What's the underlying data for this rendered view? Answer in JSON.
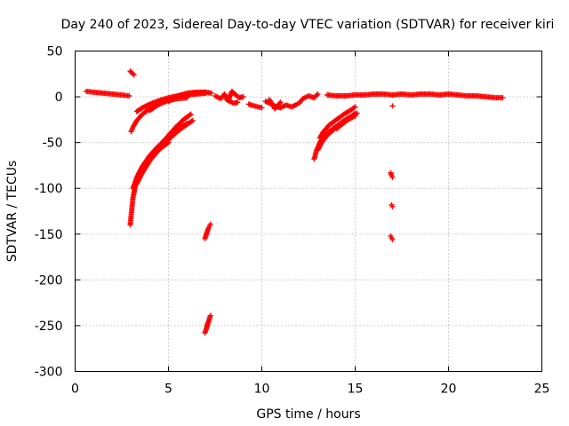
{
  "chart_data": {
    "type": "scatter",
    "title": "Day 240 of 2023, Sidereal Day-to-day VTEC variation (SDTVAR) for receiver kiri",
    "xlabel": "GPS time / hours",
    "ylabel": "SDTVAR / TECUs",
    "xlim": [
      0,
      25
    ],
    "ylim": [
      -300,
      50
    ],
    "xticks": [
      0,
      5,
      10,
      15,
      20,
      25
    ],
    "yticks": [
      50,
      0,
      -50,
      -100,
      -150,
      -200,
      -250,
      -300
    ],
    "grid": true,
    "marker": "plus",
    "color": "#ff0000",
    "series": [
      {
        "segments": [
          {
            "x": [
              0.6,
              1.0,
              1.5,
              2.0,
              2.5,
              2.9
            ],
            "y": [
              6,
              5,
              4,
              3,
              2,
              1
            ]
          },
          {
            "x": [
              2.95,
              3.05,
              3.15
            ],
            "y": [
              28,
              26,
              24
            ]
          },
          {
            "x": [
              3.0,
              3.1,
              3.3,
              3.6,
              4.0,
              4.5,
              5.0,
              5.5,
              6.0
            ],
            "y": [
              -38,
              -33,
              -26,
              -19,
              -13,
              -8,
              -4,
              -2,
              -1
            ]
          },
          {
            "x": [
              3.3,
              3.6,
              4.0,
              4.5,
              5.0,
              5.5,
              6.0,
              6.5,
              7.0
            ],
            "y": [
              -16,
              -12,
              -8,
              -4,
              -1,
              1,
              2,
              3,
              4
            ]
          },
          {
            "x": [
              4.0,
              4.5,
              5.0,
              5.5,
              6.0,
              6.5,
              7.0
            ],
            "y": [
              -15,
              -8,
              -3,
              1,
              3,
              4,
              5
            ]
          },
          {
            "x": [
              5.0,
              5.5,
              6.0,
              6.5,
              7.0,
              7.3
            ],
            "y": [
              -5,
              1,
              4,
              5,
              5,
              4
            ]
          },
          {
            "x": [
              2.95,
              3.0,
              3.05,
              3.1,
              3.2,
              3.3,
              3.5,
              3.8,
              4.2,
              4.6,
              5.0
            ],
            "y": [
              -140,
              -130,
              -120,
              -110,
              -100,
              -92,
              -82,
              -72,
              -63,
              -56,
              -50
            ]
          },
          {
            "x": [
              3.1,
              3.3,
              3.6,
              4.0,
              4.4,
              4.8,
              5.2,
              5.6,
              6.0
            ],
            "y": [
              -100,
              -88,
              -76,
              -64,
              -55,
              -47,
              -40,
              -34,
              -29
            ]
          },
          {
            "x": [
              3.3,
              3.6,
              4.0,
              4.4,
              4.8,
              5.2,
              5.6,
              6.0,
              6.3
            ],
            "y": [
              -95,
              -83,
              -70,
              -60,
              -51,
              -43,
              -36,
              -30,
              -26
            ]
          },
          {
            "x": [
              3.8,
              4.2,
              4.6,
              5.0,
              5.4,
              5.8,
              6.2
            ],
            "y": [
              -75,
              -63,
              -52,
              -42,
              -33,
              -25,
              -19
            ]
          },
          {
            "x": [
              6.95,
              7.0,
              7.05,
              7.1,
              7.15,
              7.2,
              7.25
            ],
            "y": [
              -155,
              -152,
              -149,
              -146,
              -143,
              -141,
              -139
            ]
          },
          {
            "x": [
              6.95,
              7.0,
              7.05,
              7.1,
              7.15,
              7.2,
              7.25
            ],
            "y": [
              -258,
              -255,
              -252,
              -248,
              -245,
              -242,
              -239
            ]
          },
          {
            "x": [
              7.5,
              7.8,
              8.0,
              8.2,
              8.4,
              8.6,
              8.8,
              9.0
            ],
            "y": [
              1,
              -2,
              3,
              -4,
              6,
              2,
              -1,
              0
            ]
          },
          {
            "x": [
              8.1,
              8.3,
              8.5,
              8.7
            ],
            "y": [
              -3,
              -5,
              -7,
              -6
            ]
          },
          {
            "x": [
              9.3,
              9.6,
              10.0
            ],
            "y": [
              -8,
              -10,
              -12
            ]
          },
          {
            "x": [
              10.2,
              10.5,
              10.8,
              11.0,
              11.3,
              11.6,
              11.9
            ],
            "y": [
              -5,
              -8,
              -11,
              -12,
              -9,
              -11,
              -8
            ]
          },
          {
            "x": [
              10.4,
              10.7,
              11.0
            ],
            "y": [
              -3,
              -13,
              -6
            ]
          },
          {
            "x": [
              12.0,
              12.2,
              12.5,
              12.8,
              13.0
            ],
            "y": [
              -7,
              -2,
              1,
              -1,
              3
            ]
          },
          {
            "x": [
              12.8,
              12.85,
              12.9,
              13.0,
              13.1,
              13.3,
              13.6,
              14.0,
              14.4,
              14.8,
              15.0
            ],
            "y": [
              -68,
              -65,
              -60,
              -55,
              -50,
              -44,
              -38,
              -32,
              -26,
              -21,
              -18
            ]
          },
          {
            "x": [
              13.0,
              13.2,
              13.5,
              13.9,
              14.3,
              14.7,
              15.0
            ],
            "y": [
              -58,
              -50,
              -42,
              -35,
              -29,
              -24,
              -21
            ]
          },
          {
            "x": [
              13.1,
              13.3,
              13.6,
              14.0,
              14.4,
              14.8,
              15.0
            ],
            "y": [
              -45,
              -38,
              -31,
              -25,
              -19,
              -14,
              -11
            ]
          },
          {
            "x": [
              14.0,
              14.3,
              14.6,
              14.9,
              15.1
            ],
            "y": [
              -35,
              -30,
              -25,
              -21,
              -18
            ]
          },
          {
            "x": [
              13.5,
              14.0,
              14.5,
              15.0,
              15.5,
              16.0,
              16.5,
              17.0,
              17.5,
              18.0,
              18.5,
              19.0,
              19.5,
              20.0,
              20.5,
              21.0,
              21.5,
              22.0,
              22.5,
              22.9
            ],
            "y": [
              2,
              1,
              1,
              2,
              2,
              3,
              3,
              2,
              3,
              2,
              3,
              3,
              2,
              3,
              2,
              1,
              1,
              0,
              -1,
              -1
            ]
          },
          {
            "x": [
              16.9,
              16.95,
              17.0
            ],
            "y": [
              -83,
              -86,
              -88
            ]
          },
          {
            "x": [
              16.95,
              17.0
            ],
            "y": [
              -118,
              -120
            ]
          },
          {
            "x": [
              16.9,
              16.95,
              17.0
            ],
            "y": [
              -152,
              -154,
              -156
            ]
          },
          {
            "x": [
              17.0
            ],
            "y": [
              -10
            ]
          }
        ]
      }
    ]
  }
}
